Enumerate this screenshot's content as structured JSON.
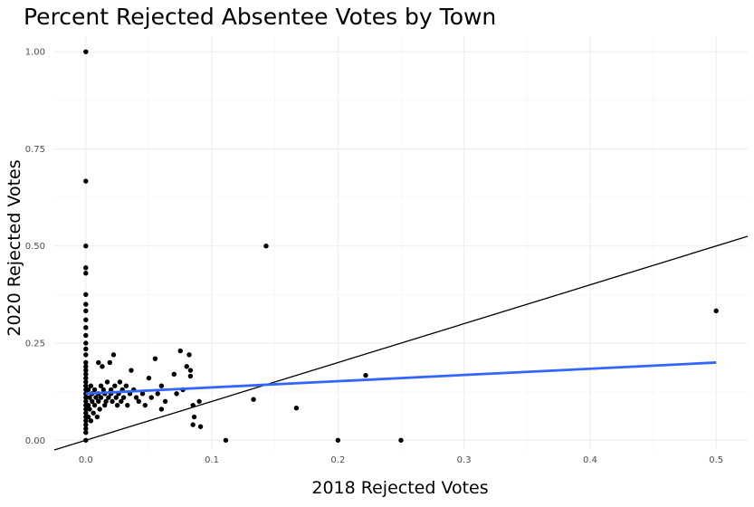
{
  "chart_data": {
    "type": "scatter",
    "title": "Percent Rejected Absentee Votes by Town",
    "xlabel": "2018 Rejected Votes",
    "ylabel": "2020 Rejected Votes",
    "xlim": [
      -0.025,
      0.525
    ],
    "ylim": [
      -0.025,
      1.04
    ],
    "x_ticks": [
      0.0,
      0.1,
      0.2,
      0.3,
      0.4,
      0.5
    ],
    "x_tick_labels": [
      "0.0",
      "0.1",
      "0.2",
      "0.3",
      "0.4",
      "0.5"
    ],
    "y_ticks": [
      0.0,
      0.25,
      0.5,
      0.75,
      1.0
    ],
    "y_tick_labels": [
      "0.00",
      "0.25",
      "0.50",
      "0.75",
      "1.00"
    ],
    "grid": true,
    "reference_line": {
      "type": "identity",
      "slope": 1,
      "intercept": 0,
      "color": "#000000"
    },
    "fit_line": {
      "x": [
        0.0,
        0.5
      ],
      "y": [
        0.12,
        0.2
      ],
      "color": "#3366ff"
    },
    "points": [
      {
        "x": 0.0,
        "y": 1.0
      },
      {
        "x": 0.0,
        "y": 0.667
      },
      {
        "x": 0.0,
        "y": 0.5
      },
      {
        "x": 0.0,
        "y": 0.444
      },
      {
        "x": 0.0,
        "y": 0.43
      },
      {
        "x": 0.0,
        "y": 0.375
      },
      {
        "x": 0.0,
        "y": 0.35
      },
      {
        "x": 0.0,
        "y": 0.333
      },
      {
        "x": 0.0,
        "y": 0.31
      },
      {
        "x": 0.0,
        "y": 0.29
      },
      {
        "x": 0.0,
        "y": 0.27
      },
      {
        "x": 0.0,
        "y": 0.25
      },
      {
        "x": 0.0,
        "y": 0.235
      },
      {
        "x": 0.0,
        "y": 0.22
      },
      {
        "x": 0.0,
        "y": 0.2
      },
      {
        "x": 0.0,
        "y": 0.19
      },
      {
        "x": 0.0,
        "y": 0.18
      },
      {
        "x": 0.0,
        "y": 0.17
      },
      {
        "x": 0.0,
        "y": 0.16
      },
      {
        "x": 0.0,
        "y": 0.15
      },
      {
        "x": 0.0,
        "y": 0.14
      },
      {
        "x": 0.0,
        "y": 0.13
      },
      {
        "x": 0.0,
        "y": 0.12
      },
      {
        "x": 0.0,
        "y": 0.11
      },
      {
        "x": 0.0,
        "y": 0.1
      },
      {
        "x": 0.0,
        "y": 0.09
      },
      {
        "x": 0.0,
        "y": 0.08
      },
      {
        "x": 0.0,
        "y": 0.07
      },
      {
        "x": 0.0,
        "y": 0.06
      },
      {
        "x": 0.0,
        "y": 0.05
      },
      {
        "x": 0.0,
        "y": 0.04
      },
      {
        "x": 0.0,
        "y": 0.03
      },
      {
        "x": 0.0,
        "y": 0.02
      },
      {
        "x": 0.0,
        "y": 0.0
      },
      {
        "x": 0.002,
        "y": 0.13
      },
      {
        "x": 0.002,
        "y": 0.09
      },
      {
        "x": 0.002,
        "y": 0.06
      },
      {
        "x": 0.003,
        "y": 0.11
      },
      {
        "x": 0.003,
        "y": 0.08
      },
      {
        "x": 0.004,
        "y": 0.14
      },
      {
        "x": 0.004,
        "y": 0.05
      },
      {
        "x": 0.005,
        "y": 0.12
      },
      {
        "x": 0.005,
        "y": 0.1
      },
      {
        "x": 0.006,
        "y": 0.07
      },
      {
        "x": 0.007,
        "y": 0.13
      },
      {
        "x": 0.007,
        "y": 0.09
      },
      {
        "x": 0.008,
        "y": 0.11
      },
      {
        "x": 0.009,
        "y": 0.06
      },
      {
        "x": 0.01,
        "y": 0.2
      },
      {
        "x": 0.01,
        "y": 0.12
      },
      {
        "x": 0.01,
        "y": 0.1
      },
      {
        "x": 0.011,
        "y": 0.08
      },
      {
        "x": 0.012,
        "y": 0.14
      },
      {
        "x": 0.012,
        "y": 0.11
      },
      {
        "x": 0.013,
        "y": 0.19
      },
      {
        "x": 0.014,
        "y": 0.13
      },
      {
        "x": 0.015,
        "y": 0.09
      },
      {
        "x": 0.015,
        "y": 0.12
      },
      {
        "x": 0.016,
        "y": 0.1
      },
      {
        "x": 0.017,
        "y": 0.15
      },
      {
        "x": 0.018,
        "y": 0.11
      },
      {
        "x": 0.019,
        "y": 0.2
      },
      {
        "x": 0.02,
        "y": 0.13
      },
      {
        "x": 0.02,
        "y": 0.12
      },
      {
        "x": 0.021,
        "y": 0.1
      },
      {
        "x": 0.022,
        "y": 0.22
      },
      {
        "x": 0.023,
        "y": 0.14
      },
      {
        "x": 0.024,
        "y": 0.11
      },
      {
        "x": 0.025,
        "y": 0.09
      },
      {
        "x": 0.026,
        "y": 0.12
      },
      {
        "x": 0.027,
        "y": 0.15
      },
      {
        "x": 0.028,
        "y": 0.1
      },
      {
        "x": 0.029,
        "y": 0.13
      },
      {
        "x": 0.03,
        "y": 0.11
      },
      {
        "x": 0.032,
        "y": 0.14
      },
      {
        "x": 0.033,
        "y": 0.09
      },
      {
        "x": 0.035,
        "y": 0.12
      },
      {
        "x": 0.036,
        "y": 0.18
      },
      {
        "x": 0.038,
        "y": 0.13
      },
      {
        "x": 0.04,
        "y": 0.11
      },
      {
        "x": 0.042,
        "y": 0.1
      },
      {
        "x": 0.045,
        "y": 0.12
      },
      {
        "x": 0.047,
        "y": 0.09
      },
      {
        "x": 0.05,
        "y": 0.16
      },
      {
        "x": 0.052,
        "y": 0.11
      },
      {
        "x": 0.055,
        "y": 0.21
      },
      {
        "x": 0.057,
        "y": 0.12
      },
      {
        "x": 0.06,
        "y": 0.14
      },
      {
        "x": 0.06,
        "y": 0.08
      },
      {
        "x": 0.063,
        "y": 0.1
      },
      {
        "x": 0.07,
        "y": 0.17
      },
      {
        "x": 0.072,
        "y": 0.12
      },
      {
        "x": 0.075,
        "y": 0.23
      },
      {
        "x": 0.077,
        "y": 0.13
      },
      {
        "x": 0.08,
        "y": 0.19
      },
      {
        "x": 0.082,
        "y": 0.22
      },
      {
        "x": 0.083,
        "y": 0.18
      },
      {
        "x": 0.083,
        "y": 0.165
      },
      {
        "x": 0.085,
        "y": 0.09
      },
      {
        "x": 0.086,
        "y": 0.06
      },
      {
        "x": 0.085,
        "y": 0.04
      },
      {
        "x": 0.09,
        "y": 0.1
      },
      {
        "x": 0.091,
        "y": 0.035
      },
      {
        "x": 0.111,
        "y": 0.0
      },
      {
        "x": 0.133,
        "y": 0.105
      },
      {
        "x": 0.143,
        "y": 0.5
      },
      {
        "x": 0.167,
        "y": 0.083
      },
      {
        "x": 0.2,
        "y": 0.0
      },
      {
        "x": 0.222,
        "y": 0.167
      },
      {
        "x": 0.25,
        "y": 0.0
      },
      {
        "x": 0.5,
        "y": 0.333
      }
    ]
  }
}
